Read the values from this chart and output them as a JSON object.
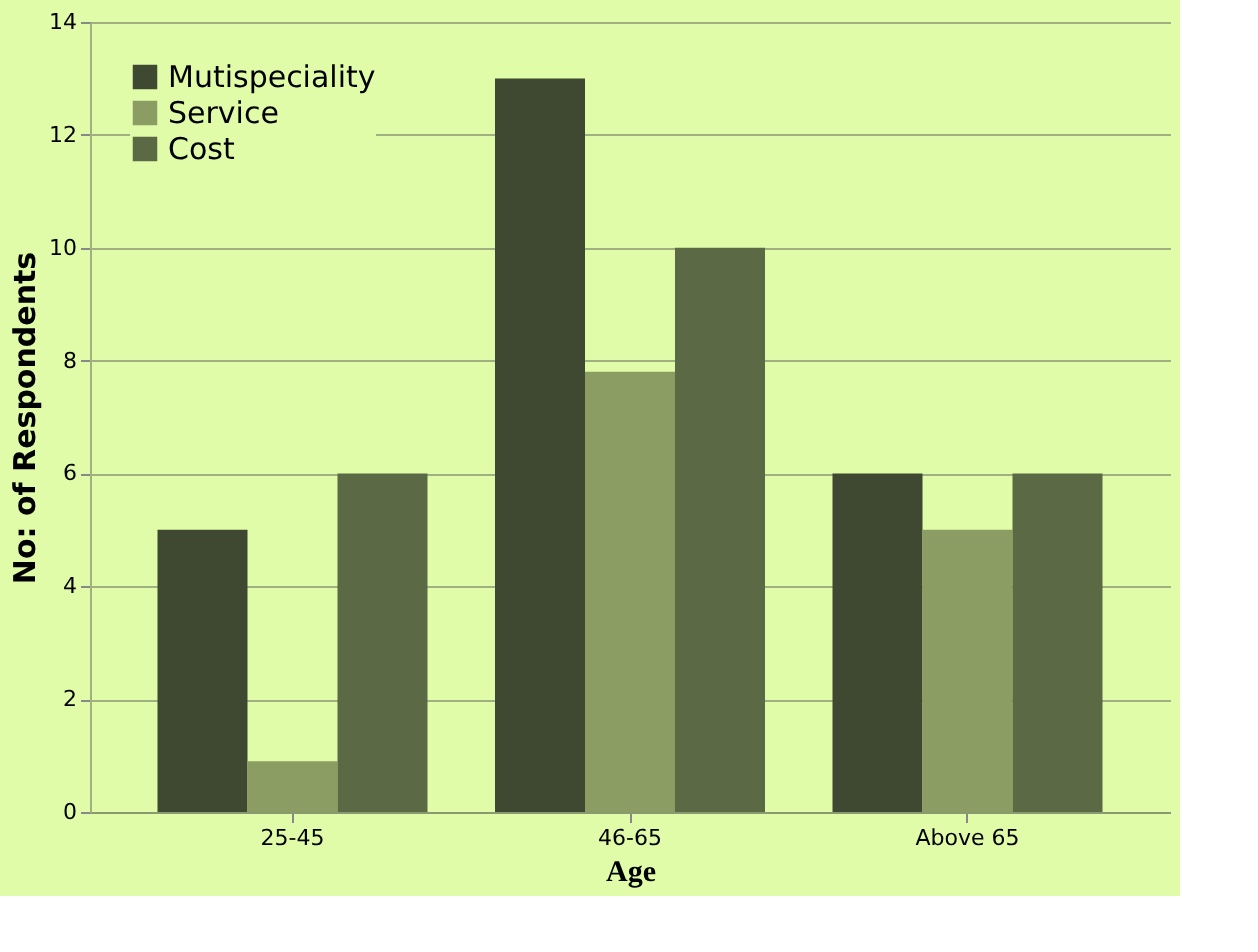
{
  "chart_data": {
    "type": "bar",
    "xlabel": "Age",
    "ylabel": "No: of Respondents",
    "categories": [
      "25-45",
      "46-65",
      "Above 65"
    ],
    "series": [
      {
        "name": "Mutispeciality",
        "color": "#3f4830",
        "values": [
          5,
          13,
          6
        ]
      },
      {
        "name": "Service",
        "color": "#8c9d64",
        "values": [
          0.9,
          7.8,
          5
        ]
      },
      {
        "name": "Cost",
        "color": "#5b6944",
        "values": [
          6,
          10,
          6
        ]
      }
    ],
    "ylim": [
      0,
      14
    ],
    "yticks": [
      0,
      2,
      4,
      6,
      8,
      10,
      12,
      14
    ],
    "grid": "y",
    "legend": "top left"
  }
}
